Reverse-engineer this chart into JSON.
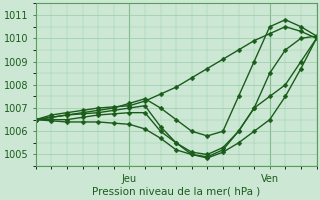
{
  "xlabel": "Pression niveau de la mer( hPa )",
  "ylim": [
    1004.5,
    1011.5
  ],
  "xlim": [
    0,
    54
  ],
  "yticks": [
    1005,
    1006,
    1007,
    1008,
    1009,
    1010,
    1011
  ],
  "xtick_jeu": 18,
  "xtick_ven": 45,
  "bg_color": "#cce8d4",
  "grid_color": "#99cca8",
  "line_color": "#1a5c1a",
  "markersize": 2.5,
  "linewidth": 1.0,
  "series": [
    [
      [
        0,
        1006.5
      ],
      [
        3,
        1006.7
      ],
      [
        6,
        1006.8
      ],
      [
        9,
        1006.9
      ],
      [
        12,
        1007.0
      ],
      [
        15,
        1007.05
      ],
      [
        18,
        1007.1
      ],
      [
        21,
        1007.3
      ],
      [
        24,
        1007.6
      ],
      [
        27,
        1007.9
      ],
      [
        30,
        1008.3
      ],
      [
        33,
        1008.7
      ],
      [
        36,
        1009.1
      ],
      [
        39,
        1009.5
      ],
      [
        42,
        1009.9
      ],
      [
        45,
        1010.2
      ],
      [
        48,
        1010.5
      ],
      [
        51,
        1010.3
      ],
      [
        54,
        1010.0
      ]
    ],
    [
      [
        0,
        1006.5
      ],
      [
        3,
        1006.6
      ],
      [
        6,
        1006.7
      ],
      [
        9,
        1006.8
      ],
      [
        12,
        1006.9
      ],
      [
        15,
        1007.0
      ],
      [
        18,
        1007.2
      ],
      [
        21,
        1007.4
      ],
      [
        24,
        1007.0
      ],
      [
        27,
        1006.5
      ],
      [
        30,
        1006.0
      ],
      [
        33,
        1005.8
      ],
      [
        36,
        1006.0
      ],
      [
        39,
        1007.5
      ],
      [
        42,
        1009.0
      ],
      [
        45,
        1010.5
      ],
      [
        48,
        1010.8
      ],
      [
        51,
        1010.5
      ],
      [
        54,
        1010.1
      ]
    ],
    [
      [
        0,
        1006.5
      ],
      [
        3,
        1006.6
      ],
      [
        6,
        1006.7
      ],
      [
        9,
        1006.75
      ],
      [
        12,
        1006.8
      ],
      [
        15,
        1006.9
      ],
      [
        18,
        1007.0
      ],
      [
        21,
        1007.1
      ],
      [
        24,
        1006.2
      ],
      [
        27,
        1005.5
      ],
      [
        30,
        1005.0
      ],
      [
        33,
        1004.9
      ],
      [
        36,
        1005.2
      ],
      [
        39,
        1006.0
      ],
      [
        42,
        1007.0
      ],
      [
        45,
        1008.5
      ],
      [
        48,
        1009.5
      ],
      [
        51,
        1010.0
      ],
      [
        54,
        1010.1
      ]
    ],
    [
      [
        0,
        1006.5
      ],
      [
        3,
        1006.5
      ],
      [
        6,
        1006.5
      ],
      [
        9,
        1006.6
      ],
      [
        12,
        1006.7
      ],
      [
        15,
        1006.75
      ],
      [
        18,
        1006.8
      ],
      [
        21,
        1006.8
      ],
      [
        24,
        1006.0
      ],
      [
        27,
        1005.5
      ],
      [
        30,
        1005.1
      ],
      [
        33,
        1005.0
      ],
      [
        36,
        1005.3
      ],
      [
        39,
        1006.0
      ],
      [
        42,
        1007.0
      ],
      [
        45,
        1007.5
      ],
      [
        48,
        1008.0
      ],
      [
        51,
        1009.0
      ],
      [
        54,
        1010.0
      ]
    ],
    [
      [
        0,
        1006.5
      ],
      [
        3,
        1006.45
      ],
      [
        6,
        1006.4
      ],
      [
        9,
        1006.4
      ],
      [
        12,
        1006.4
      ],
      [
        15,
        1006.35
      ],
      [
        18,
        1006.3
      ],
      [
        21,
        1006.1
      ],
      [
        24,
        1005.7
      ],
      [
        27,
        1005.2
      ],
      [
        30,
        1005.0
      ],
      [
        33,
        1004.85
      ],
      [
        36,
        1005.1
      ],
      [
        39,
        1005.5
      ],
      [
        42,
        1006.0
      ],
      [
        45,
        1006.5
      ],
      [
        48,
        1007.5
      ],
      [
        51,
        1008.7
      ],
      [
        54,
        1010.0
      ]
    ]
  ]
}
